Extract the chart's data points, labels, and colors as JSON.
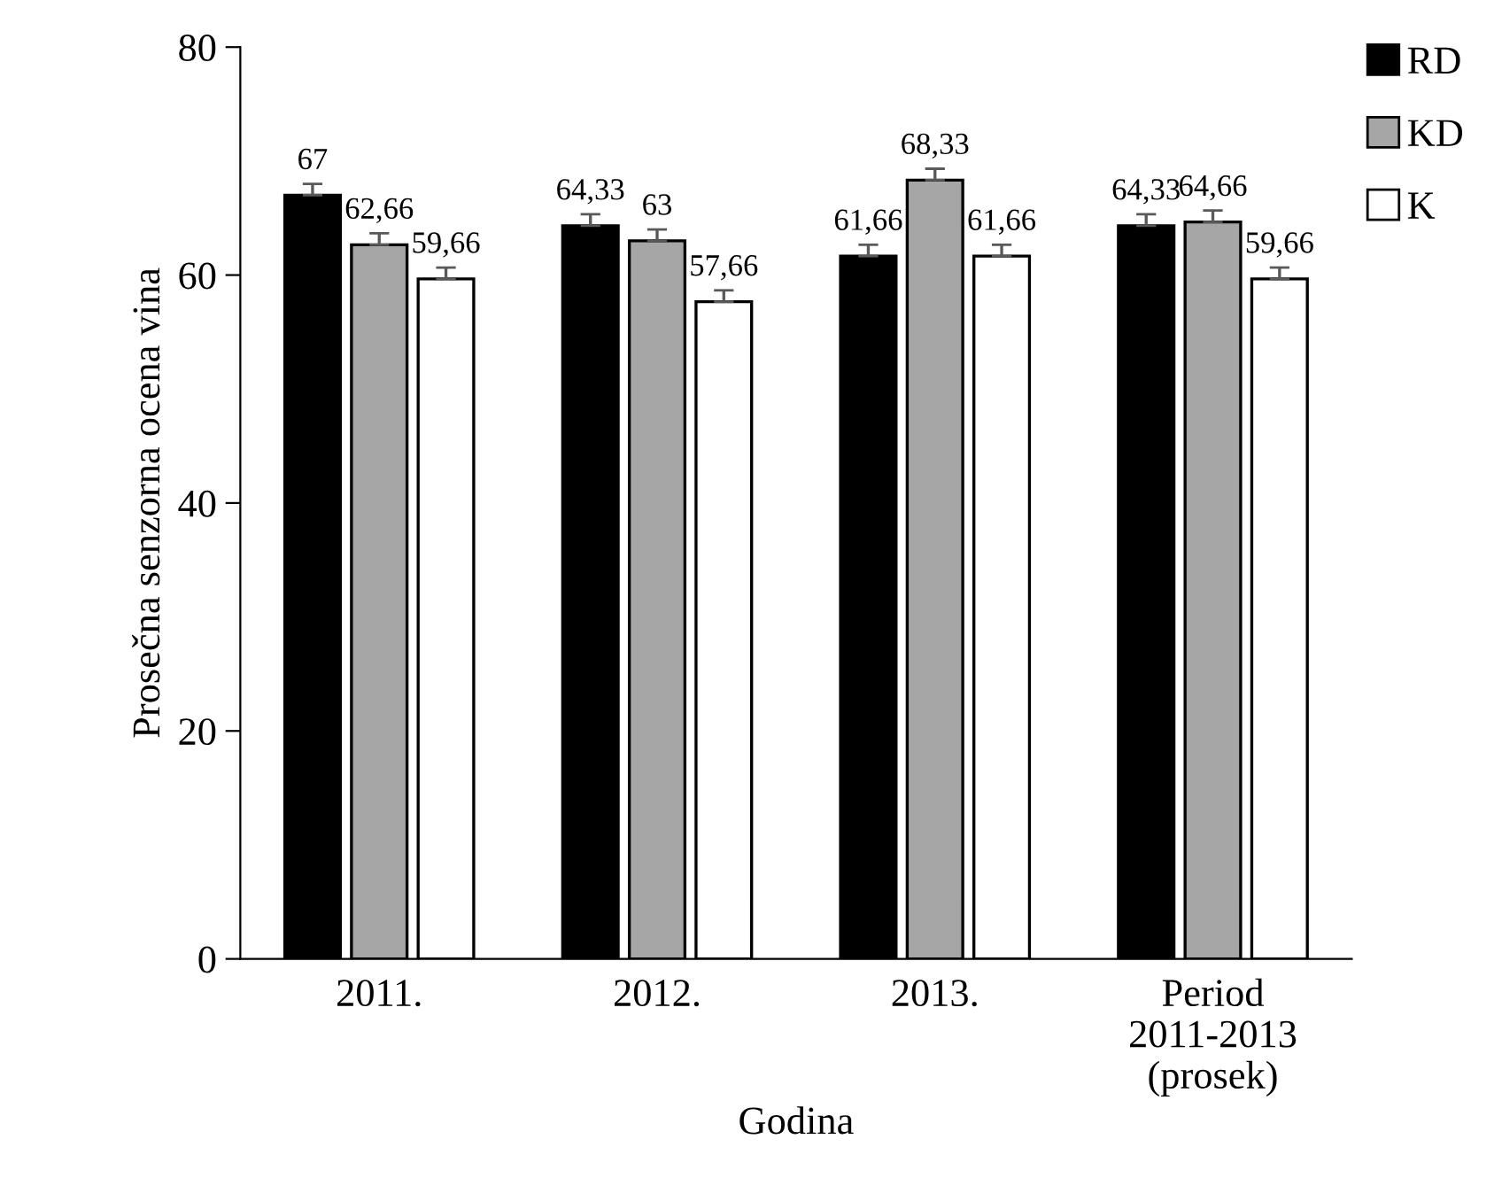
{
  "chart_data": {
    "type": "bar",
    "xlabel": "Godina",
    "ylabel": "Prosečna senzorna ocena vina",
    "categories": [
      "2011.",
      "2012.",
      "2013.",
      "Period\n2011-2013\n(prosek)"
    ],
    "series": [
      {
        "name": "RD",
        "color": "#000000",
        "values": [
          67,
          64.33,
          61.66,
          64.33
        ],
        "errors": [
          1,
          1,
          1,
          1
        ],
        "value_labels": [
          "67",
          "64,33",
          "61,66",
          "64,33"
        ]
      },
      {
        "name": "KD",
        "color": "#a6a6a6",
        "values": [
          62.66,
          63,
          68.33,
          64.66
        ],
        "errors": [
          1,
          1,
          1,
          1
        ],
        "value_labels": [
          "62,66",
          "63",
          "68,33",
          "64,66"
        ]
      },
      {
        "name": "K",
        "color": "#ffffff",
        "values": [
          59.66,
          57.66,
          61.66,
          59.66
        ],
        "errors": [
          1,
          1,
          1,
          1
        ],
        "value_labels": [
          "59,66",
          "57,66",
          "61,66",
          "59,66"
        ]
      }
    ],
    "ylim": [
      0,
      80
    ],
    "yticks": [
      0,
      20,
      40,
      60,
      80
    ],
    "grid": false,
    "legend": "top right"
  }
}
